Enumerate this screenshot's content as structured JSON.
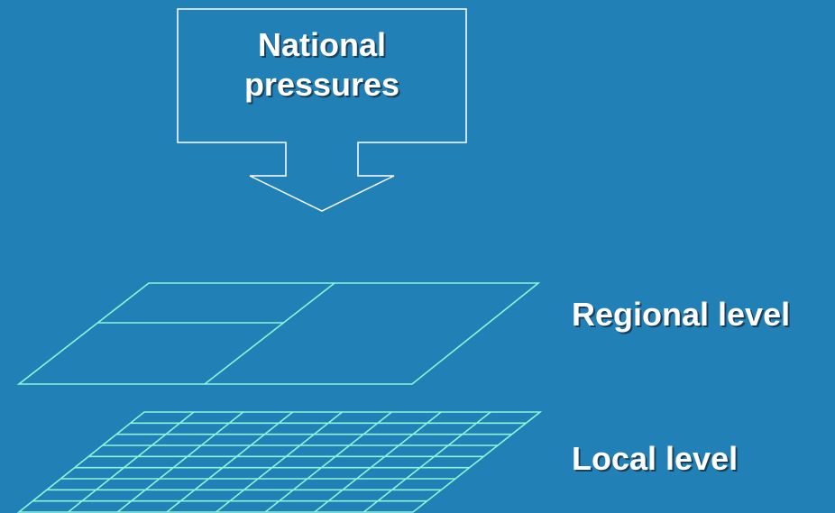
{
  "pressure_box": {
    "line1": "National",
    "line2": "pressures"
  },
  "levels": {
    "regional": "Regional level",
    "local": "Local level"
  },
  "colors": {
    "background": "#2180b5",
    "grid_lines": "#8ff5d8",
    "box_outline": "#ffffff",
    "text": "#ffffff"
  }
}
